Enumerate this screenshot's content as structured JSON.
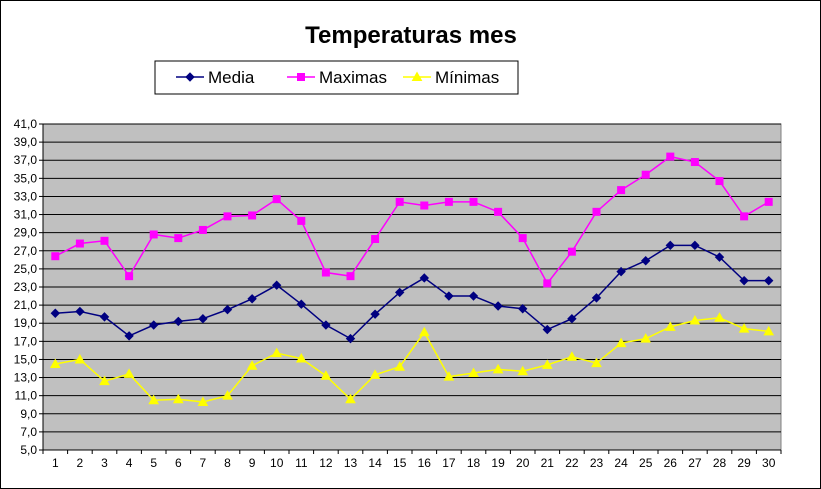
{
  "chart_data": {
    "type": "line",
    "title": "Temperaturas mes",
    "xlabel": "",
    "ylabel": "",
    "ylim": [
      5.0,
      41.0
    ],
    "y_ticks": [
      "5,0",
      "7,0",
      "9,0",
      "11,0",
      "13,0",
      "15,0",
      "17,0",
      "19,0",
      "21,0",
      "23,0",
      "25,0",
      "27,0",
      "29,0",
      "31,0",
      "33,0",
      "35,0",
      "37,0",
      "39,0",
      "41,0"
    ],
    "categories": [
      "1",
      "2",
      "3",
      "4",
      "5",
      "6",
      "7",
      "8",
      "9",
      "10",
      "11",
      "12",
      "13",
      "14",
      "15",
      "16",
      "17",
      "18",
      "19",
      "20",
      "21",
      "22",
      "23",
      "24",
      "25",
      "26",
      "27",
      "28",
      "29",
      "30"
    ],
    "grid": true,
    "legend_position": "top",
    "plot_background": "#c0c0c0",
    "series": [
      {
        "name": "Media",
        "color": "#000080",
        "marker": "diamond",
        "values": [
          20.1,
          20.3,
          19.7,
          17.6,
          18.8,
          19.2,
          19.5,
          20.5,
          21.7,
          23.2,
          21.1,
          18.8,
          17.3,
          20.0,
          22.4,
          24.0,
          22.0,
          22.0,
          20.9,
          20.6,
          18.3,
          19.5,
          21.8,
          24.7,
          25.9,
          27.6,
          27.6,
          26.3,
          23.7,
          23.7
        ]
      },
      {
        "name": "Maximas",
        "color": "#ff00ff",
        "marker": "square",
        "values": [
          26.4,
          27.8,
          28.1,
          24.2,
          28.8,
          28.4,
          29.3,
          30.8,
          30.9,
          32.7,
          30.3,
          24.6,
          24.2,
          28.3,
          32.4,
          32.0,
          32.4,
          32.4,
          31.3,
          28.4,
          23.4,
          26.9,
          31.3,
          33.7,
          35.4,
          37.4,
          36.8,
          34.7,
          30.8,
          32.4
        ]
      },
      {
        "name": "Mínimas",
        "color": "#ffff00",
        "marker": "triangle",
        "values": [
          14.5,
          15.0,
          12.6,
          13.4,
          10.5,
          10.6,
          10.3,
          11.0,
          14.3,
          15.7,
          15.1,
          13.2,
          10.6,
          13.3,
          14.2,
          18.0,
          13.1,
          13.5,
          13.9,
          13.7,
          14.4,
          15.3,
          14.6,
          16.8,
          17.3,
          18.6,
          19.3,
          19.6,
          18.4,
          18.1
        ]
      }
    ]
  }
}
